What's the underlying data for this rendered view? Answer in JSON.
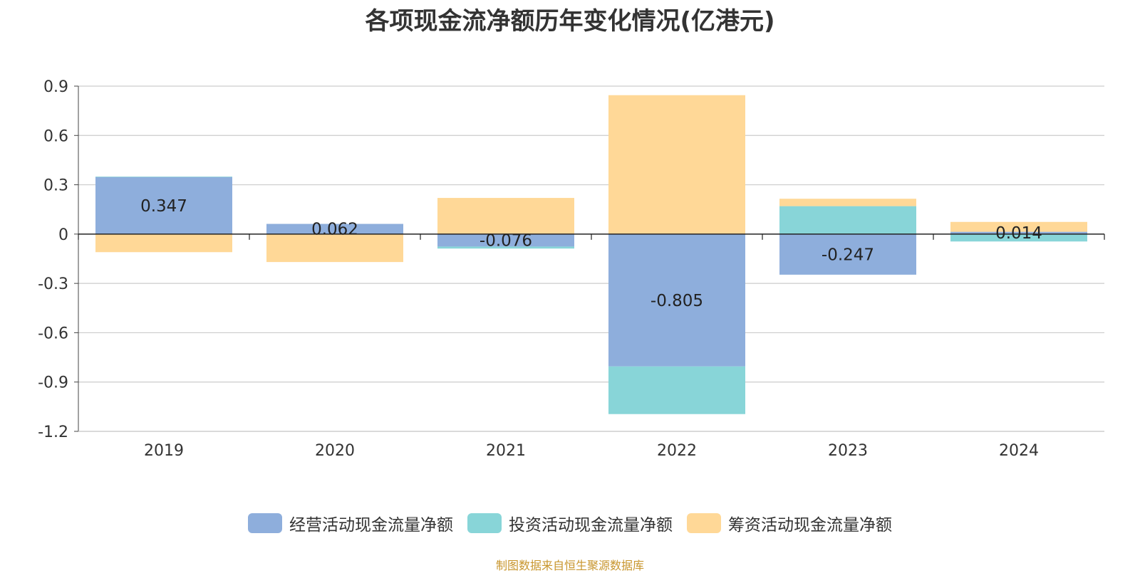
{
  "source_note": "制图数据来自恒生聚源数据库",
  "chart_data": {
    "type": "bar",
    "stacked": true,
    "title": "各项现金流净额历年变化情况(亿港元)",
    "xlabel": "",
    "ylabel": "",
    "categories": [
      "2019",
      "2020",
      "2021",
      "2022",
      "2023",
      "2024"
    ],
    "ylim": [
      -1.2,
      0.9
    ],
    "yticks": [
      0.9,
      0.6,
      0.3,
      0,
      -0.3,
      -0.6,
      -0.9,
      -1.2
    ],
    "ytick_labels": [
      "0.9",
      "0.6",
      "0.3",
      "0",
      "-0.3",
      "-0.6",
      "-0.9",
      "-1.2"
    ],
    "grid": true,
    "legend_position": "bottom",
    "series": [
      {
        "name": "经营活动现金流量净额",
        "color": "#8eaedc",
        "values": [
          0.347,
          0.062,
          -0.076,
          -0.805,
          -0.247,
          0.014
        ],
        "labels": [
          "0.347",
          "0.062",
          "-0.076",
          "-0.805",
          "-0.247",
          "0.014"
        ]
      },
      {
        "name": "投资活动现金流量净额",
        "color": "#88d5d8",
        "values": [
          0.003,
          0.0,
          -0.012,
          -0.29,
          0.17,
          -0.045
        ],
        "labels": null
      },
      {
        "name": "筹资活动现金流量净额",
        "color": "#ffd897",
        "values": [
          -0.11,
          -0.17,
          0.22,
          0.845,
          0.045,
          0.06
        ],
        "labels": null
      }
    ]
  }
}
